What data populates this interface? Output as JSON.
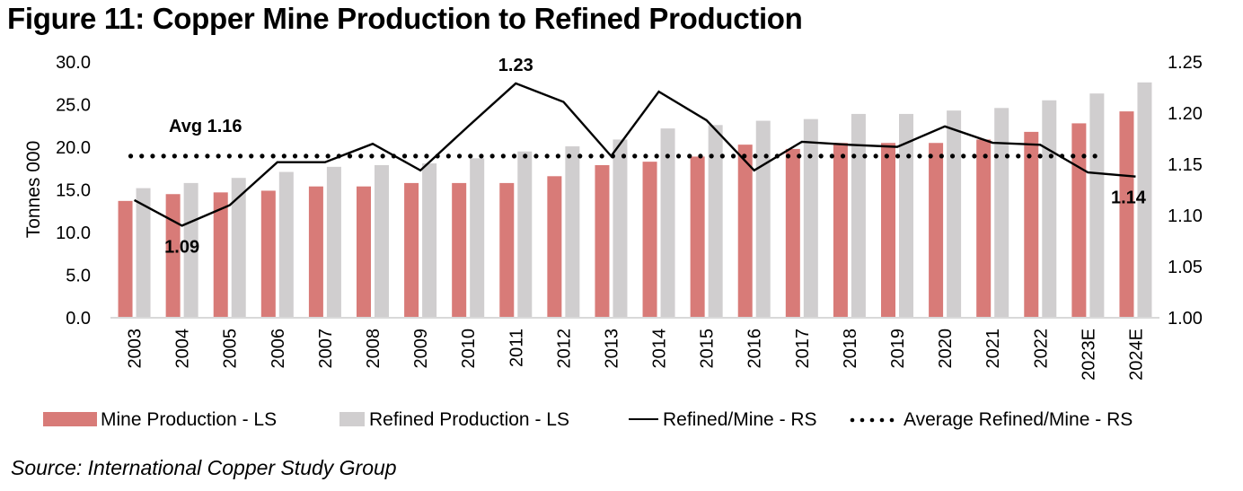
{
  "figure": {
    "title": "Figure 11: Copper Mine Production to Refined Production",
    "source": "Source: International Copper Study Group"
  },
  "colors": {
    "mine": "#d87b78",
    "refined": "#d0cecf",
    "line": "#000000",
    "axis": "#d9d9d9"
  },
  "chart_data": {
    "type": "bar",
    "title": "Figure 11: Copper Mine Production to Refined Production",
    "xlabel": "",
    "ylabel": "Tonnes 000",
    "y2label": "",
    "ylim": [
      0,
      30
    ],
    "y2lim": [
      1.0,
      1.25
    ],
    "yticks": [
      "0.0",
      "5.0",
      "10.0",
      "15.0",
      "20.0",
      "25.0",
      "30.0"
    ],
    "y2ticks": [
      "1.00",
      "1.05",
      "1.10",
      "1.15",
      "1.20",
      "1.25"
    ],
    "grid": false,
    "legend_position": "bottom",
    "categories": [
      "2003",
      "2004",
      "2005",
      "2006",
      "2007",
      "2008",
      "2009",
      "2010",
      "2011",
      "2012",
      "2013",
      "2014",
      "2015",
      "2016",
      "2017",
      "2018",
      "2019",
      "2020",
      "2021",
      "2022",
      "2023E",
      "2024E"
    ],
    "series": [
      {
        "name": "Mine Production - LS",
        "type": "bar",
        "axis": "left",
        "values": [
          13.7,
          14.5,
          14.7,
          14.9,
          15.4,
          15.4,
          15.8,
          15.8,
          15.8,
          16.6,
          17.9,
          18.3,
          18.9,
          20.3,
          19.8,
          20.5,
          20.5,
          20.5,
          20.9,
          21.8,
          22.8,
          24.2
        ]
      },
      {
        "name": "Refined Production - LS",
        "type": "bar",
        "axis": "left",
        "values": [
          15.2,
          15.8,
          16.4,
          17.1,
          17.7,
          17.9,
          18.1,
          18.7,
          19.5,
          20.1,
          20.9,
          22.2,
          22.6,
          23.1,
          23.3,
          23.9,
          23.9,
          24.3,
          24.6,
          25.5,
          26.3,
          27.6
        ]
      },
      {
        "name": "Refined/Mine - RS",
        "type": "line",
        "axis": "right",
        "values": [
          1.115,
          1.09,
          1.11,
          1.152,
          1.152,
          1.17,
          1.144,
          1.187,
          1.229,
          1.211,
          1.158,
          1.221,
          1.193,
          1.144,
          1.172,
          1.169,
          1.167,
          1.187,
          1.171,
          1.169,
          1.142,
          1.138
        ]
      },
      {
        "name": "Average Refined/Mine - RS",
        "type": "line-dotted",
        "axis": "right",
        "value": 1.158
      }
    ],
    "annotations": [
      {
        "text": "1.23",
        "category": "2011",
        "position": "above"
      },
      {
        "text": "1.09",
        "category": "2004",
        "position": "below"
      },
      {
        "text": "1.14",
        "category": "2024E",
        "position": "below"
      },
      {
        "text": "Avg  1.16",
        "category": "2004",
        "position": "above-average-line"
      }
    ]
  }
}
